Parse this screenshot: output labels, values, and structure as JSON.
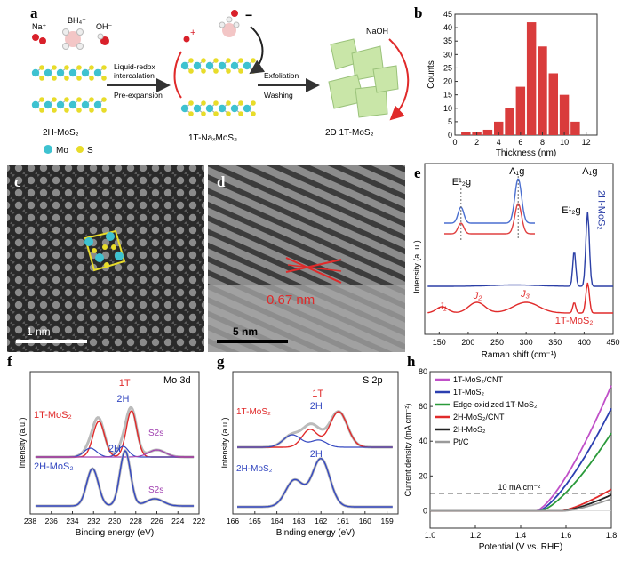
{
  "panels": {
    "a": {
      "letter": "a",
      "ions": {
        "na": "Na⁺",
        "bh4": "BH₄⁻",
        "oh": "OH⁻"
      },
      "steps": {
        "step1_line1": "Liquid-redox",
        "step1_line2": "intercalation",
        "step1_line3": "Pre-expansion",
        "step2_line1": "Exfoliation",
        "step2_line2": "Washing"
      },
      "labels": {
        "left": "2H-MoS₂",
        "middle": "1T-NaₓMoS₂",
        "right": "2D 1T-MoS₂",
        "naoh": "NaOH"
      },
      "legend": {
        "mo": "Mo",
        "s": "S"
      },
      "colors": {
        "mo": "#3ec2d0",
        "s": "#e8dc2a"
      }
    },
    "c": {
      "letter": "c",
      "scale": "1 nm"
    },
    "d": {
      "letter": "d",
      "scale": "5 nm",
      "spacing": "0.67 nm"
    },
    "f": {
      "letter": "f",
      "tag": "Mo 3d",
      "xlabel": "Binding energy (eV)",
      "ylabel": "Intensity (a.u.)",
      "l1T": "1T",
      "l2H": "2H",
      "l1TMoS2": "1T-MoS₂",
      "l2HMoS2": "2H-MoS₂",
      "s2s": "S2s",
      "l2Hb": "2H",
      "ticks": [
        "238",
        "236",
        "234",
        "232",
        "230",
        "228",
        "226",
        "224",
        "222"
      ]
    },
    "g": {
      "letter": "g",
      "tag": "S 2p",
      "xlabel": "Binding energy (eV)",
      "ylabel": "Intensity (a.u.)",
      "l1T": "1T",
      "l2H": "2H",
      "l1TMoS2": "1T-MoS₂",
      "l2HMoS2": "2H-MoS₂",
      "l2Hb": "2H",
      "ticks": [
        "166",
        "165",
        "164",
        "163",
        "162",
        "161",
        "160",
        "159"
      ]
    }
  },
  "chart_data": [
    {
      "id": "b",
      "letter": "b",
      "type": "bar",
      "xlabel": "Thickness (nm)",
      "ylabel": "Counts",
      "xlim": [
        0,
        13
      ],
      "ylim": [
        0,
        45
      ],
      "xticks": [
        0,
        2,
        4,
        6,
        8,
        10,
        12
      ],
      "yticks": [
        0,
        5,
        10,
        15,
        20,
        25,
        30,
        35,
        40,
        45
      ],
      "x": [
        1,
        2,
        3,
        4,
        5,
        6,
        7,
        8,
        9,
        10,
        11
      ],
      "values": [
        1,
        1,
        2,
        5,
        10,
        18,
        42,
        33,
        23,
        15,
        5
      ],
      "color": "#d93c3c"
    },
    {
      "id": "e",
      "letter": "e",
      "type": "line",
      "xlabel": "Raman shift (cm⁻¹)",
      "ylabel": "Intensity (a. u.)",
      "xticks": [
        150,
        200,
        250,
        300,
        350,
        400,
        450
      ],
      "annotations": {
        "e2g_inset": "E¹₂g",
        "a1g_inset": "A₁g",
        "e2g": "E¹₂g",
        "a1g": "A₁g",
        "j1": "J₁",
        "j2": "J₂",
        "j3": "J₃",
        "mos2_2h": "2H-MoS₂",
        "mos2_1t": "1T-MoS₂"
      },
      "series": [
        {
          "name": "2H-MoS₂",
          "color": "#2b3fa6"
        },
        {
          "name": "1T-MoS₂",
          "color": "#e02a2a"
        }
      ]
    },
    {
      "id": "h",
      "letter": "h",
      "type": "line",
      "xlabel": "Potential (V vs. RHE)",
      "ylabel": "Current density (mA cm⁻²)",
      "xlim": [
        1.0,
        1.8
      ],
      "ylim": [
        -10,
        80
      ],
      "xticks": [
        1.0,
        1.2,
        1.4,
        1.6,
        1.8
      ],
      "yticks": [
        0,
        20,
        40,
        60,
        80
      ],
      "reference": {
        "label": "10 mA cm⁻²",
        "value": 10
      },
      "series": [
        {
          "name": "1T-MoS₂/CNT",
          "color": "#c050c8",
          "onset": 1.47,
          "k": 340,
          "p": 1.4
        },
        {
          "name": "1T-MoS₂",
          "color": "#2b3fb0",
          "onset": 1.48,
          "k": 290,
          "p": 1.4
        },
        {
          "name": "Edge-oxidized 1T-MoS₂",
          "color": "#2a9a3a",
          "onset": 1.49,
          "k": 230,
          "p": 1.4
        },
        {
          "name": "2H-MoS₂/CNT",
          "color": "#e02a2a",
          "onset": 1.58,
          "k": 95,
          "p": 1.35
        },
        {
          "name": "2H-MoS₂",
          "color": "#222222",
          "onset": 1.59,
          "k": 75,
          "p": 1.35
        },
        {
          "name": "Pt/C",
          "color": "#9a9a9a",
          "onset": 1.6,
          "k": 60,
          "p": 1.35
        }
      ]
    }
  ]
}
